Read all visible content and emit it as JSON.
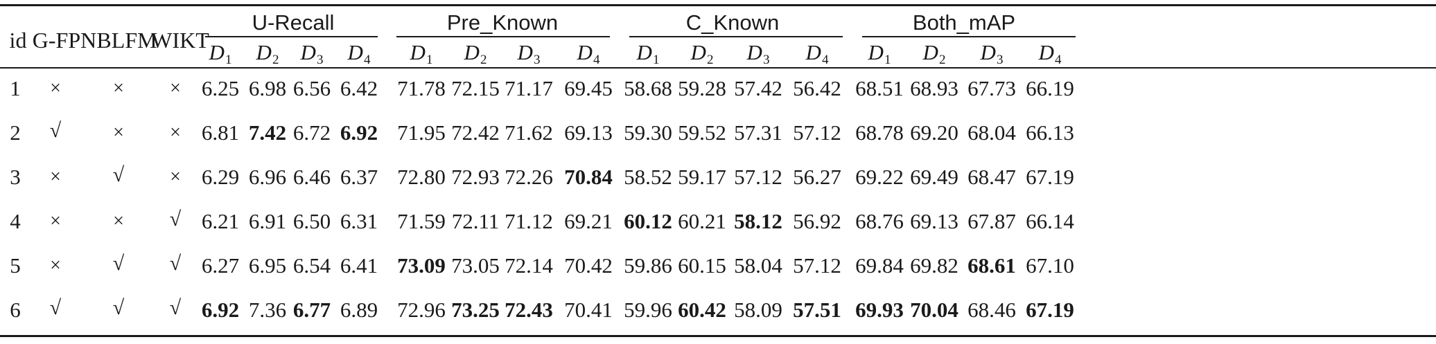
{
  "table": {
    "headers": {
      "id": "id",
      "gfpn": "G-FPN",
      "blfm": "BLFM",
      "wikt": "WIKT",
      "groups": [
        "U-Recall",
        "Pre_Known",
        "C_Known",
        "Both_mAP"
      ],
      "sub_letter": "D",
      "sub_indices": [
        "1",
        "2",
        "3",
        "4"
      ]
    },
    "rows": [
      {
        "id": "1",
        "gfpn": "×",
        "blfm": "×",
        "wikt": "×",
        "values": [
          "6.25",
          "6.98",
          "6.56",
          "6.42",
          "71.78",
          "72.15",
          "71.17",
          "69.45",
          "58.68",
          "59.28",
          "57.42",
          "56.42",
          "68.51",
          "68.93",
          "67.73",
          "66.19"
        ],
        "bold": []
      },
      {
        "id": "2",
        "gfpn": "√",
        "blfm": "×",
        "wikt": "×",
        "values": [
          "6.81",
          "7.42",
          "6.72",
          "6.92",
          "71.95",
          "72.42",
          "71.62",
          "69.13",
          "59.30",
          "59.52",
          "57.31",
          "57.12",
          "68.78",
          "69.20",
          "68.04",
          "66.13"
        ],
        "bold": [
          1,
          3
        ]
      },
      {
        "id": "3",
        "gfpn": "×",
        "blfm": "√",
        "wikt": "×",
        "values": [
          "6.29",
          "6.96",
          "6.46",
          "6.37",
          "72.80",
          "72.93",
          "72.26",
          "70.84",
          "58.52",
          "59.17",
          "57.12",
          "56.27",
          "69.22",
          "69.49",
          "68.47",
          "67.19"
        ],
        "bold": [
          7
        ]
      },
      {
        "id": "4",
        "gfpn": "×",
        "blfm": "×",
        "wikt": "√",
        "values": [
          "6.21",
          "6.91",
          "6.50",
          "6.31",
          "71.59",
          "72.11",
          "71.12",
          "69.21",
          "60.12",
          "60.21",
          "58.12",
          "56.92",
          "68.76",
          "69.13",
          "67.87",
          "66.14"
        ],
        "bold": [
          8,
          10
        ]
      },
      {
        "id": "5",
        "gfpn": "×",
        "blfm": "√",
        "wikt": "√",
        "values": [
          "6.27",
          "6.95",
          "6.54",
          "6.41",
          "73.09",
          "73.05",
          "72.14",
          "70.42",
          "59.86",
          "60.15",
          "58.04",
          "57.12",
          "69.84",
          "69.82",
          "68.61",
          "67.10"
        ],
        "bold": [
          4,
          14
        ]
      },
      {
        "id": "6",
        "gfpn": "√",
        "blfm": "√",
        "wikt": "√",
        "values": [
          "6.92",
          "7.36",
          "6.77",
          "6.89",
          "72.96",
          "73.25",
          "72.43",
          "70.41",
          "59.96",
          "60.42",
          "58.09",
          "57.51",
          "69.93",
          "70.04",
          "68.46",
          "67.19"
        ],
        "bold": [
          0,
          2,
          5,
          6,
          9,
          11,
          12,
          13,
          15
        ]
      }
    ]
  }
}
